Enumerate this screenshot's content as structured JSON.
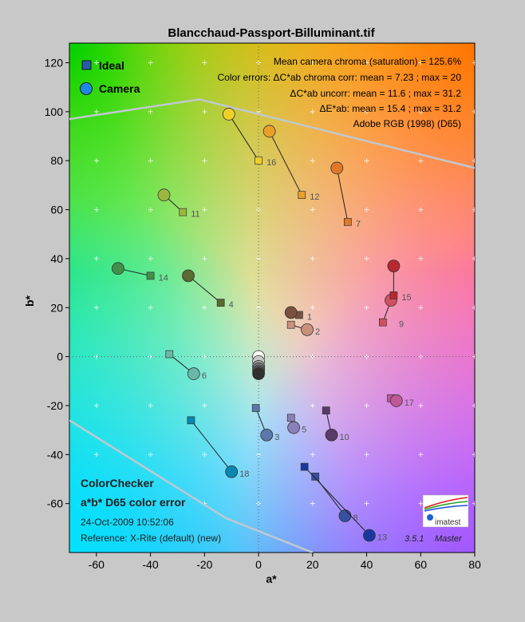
{
  "chart_data": {
    "type": "scatter",
    "title": "Blancchaud-Passport-Billuminant.tif",
    "xlabel": "a*",
    "ylabel": "b*",
    "xlim": [
      -70,
      80
    ],
    "ylim": [
      -80,
      128
    ],
    "xticks": [
      -60,
      -40,
      -20,
      0,
      20,
      40,
      60,
      80
    ],
    "yticks": [
      120,
      100,
      80,
      60,
      40,
      20,
      0,
      -20,
      -40,
      -60
    ],
    "legend": {
      "position": "top-left",
      "entries": [
        {
          "label": "Ideal",
          "marker": "square",
          "color": "#2a5aa8"
        },
        {
          "label": "Camera",
          "marker": "circle",
          "color": "#1e88e5"
        }
      ]
    },
    "annotations": [
      "Mean camera chroma (saturation) = 125.6%",
      "Color errors: ΔC*ab chroma corr:  mean = 7.23 ;  max = 20",
      "ΔC*ab uncorr:  mean = 11.6 ;  max = 31.2",
      "ΔE*ab:  mean = 15.4 ;  max = 31.2",
      "Adobe RGB (1998) (D65)"
    ],
    "gamut_boundary": [
      [
        -70,
        97
      ],
      [
        -22,
        105
      ],
      [
        -20,
        104.5
      ],
      [
        80,
        77
      ]
    ],
    "gamut_boundary_lower": [
      [
        -70,
        -26
      ],
      [
        -12,
        -66
      ],
      [
        20,
        -80
      ]
    ],
    "patches": [
      {
        "id": "1",
        "ideal": [
          15,
          17
        ],
        "camera": [
          12,
          18
        ],
        "color": "#7a5040"
      },
      {
        "id": "2",
        "ideal": [
          12,
          13
        ],
        "camera": [
          18,
          11
        ],
        "color": "#c9917c"
      },
      {
        "id": "3",
        "ideal": [
          -1,
          -21
        ],
        "camera": [
          3,
          -32
        ],
        "color": "#5a78a8"
      },
      {
        "id": "4",
        "ideal": [
          -14,
          22
        ],
        "camera": [
          -26,
          33
        ],
        "color": "#5a6a30"
      },
      {
        "id": "5",
        "ideal": [
          12,
          -25
        ],
        "camera": [
          13,
          -29
        ],
        "color": "#8a80b8"
      },
      {
        "id": "6",
        "ideal": [
          -33,
          1
        ],
        "camera": [
          -24,
          -7
        ],
        "color": "#6ab8a8"
      },
      {
        "id": "7",
        "ideal": [
          33,
          55
        ],
        "camera": [
          29,
          77
        ],
        "color": "#e07828"
      },
      {
        "id": "8",
        "ideal": [
          21,
          -49
        ],
        "camera": [
          32,
          -65
        ],
        "color": "#3850a0"
      },
      {
        "id": "9",
        "ideal": [
          46,
          14
        ],
        "camera": [
          49,
          23
        ],
        "color": "#d05060"
      },
      {
        "id": "10",
        "ideal": [
          25,
          -22
        ],
        "camera": [
          27,
          -32
        ],
        "color": "#5a3a68"
      },
      {
        "id": "11",
        "ideal": [
          -28,
          59
        ],
        "camera": [
          -35,
          66
        ],
        "color": "#9ab840"
      },
      {
        "id": "12",
        "ideal": [
          16,
          66
        ],
        "camera": [
          4,
          92
        ],
        "color": "#e8a028"
      },
      {
        "id": "13",
        "ideal": [
          17,
          -45
        ],
        "camera": [
          41,
          -73
        ],
        "color": "#1838a0"
      },
      {
        "id": "14",
        "ideal": [
          -40,
          33
        ],
        "camera": [
          -52,
          36
        ],
        "color": "#40904a"
      },
      {
        "id": "15",
        "ideal": [
          50,
          25
        ],
        "camera": [
          50,
          37
        ],
        "color": "#b82830"
      },
      {
        "id": "16",
        "ideal": [
          0,
          80
        ],
        "camera": [
          -11,
          99
        ],
        "color": "#f0d028"
      },
      {
        "id": "17",
        "ideal": [
          49,
          -17
        ],
        "camera": [
          51,
          -18
        ],
        "color": "#c05898"
      },
      {
        "id": "18",
        "ideal": [
          -25,
          -26
        ],
        "camera": [
          -10,
          -47
        ],
        "color": "#0888b0"
      },
      {
        "id": "white",
        "ideal": [
          0,
          0
        ],
        "camera": [
          0,
          0
        ],
        "color": "#ffffff"
      },
      {
        "id": "grey1",
        "ideal": [
          0,
          -2
        ],
        "camera": [
          0,
          -2
        ],
        "color": "#c8c8c8"
      },
      {
        "id": "grey2",
        "ideal": [
          0,
          -4
        ],
        "camera": [
          0,
          -4
        ],
        "color": "#a0a0a0"
      },
      {
        "id": "grey3",
        "ideal": [
          0,
          -5
        ],
        "camera": [
          0,
          -5
        ],
        "color": "#7a7a7a"
      },
      {
        "id": "grey4",
        "ideal": [
          0,
          -6
        ],
        "camera": [
          0,
          -6
        ],
        "color": "#555555"
      },
      {
        "id": "black",
        "ideal": [
          0,
          -7
        ],
        "camera": [
          0,
          -7
        ],
        "color": "#303030"
      }
    ]
  },
  "bottom_left": {
    "line1": "ColorChecker",
    "line2": "a*b* D65 color error",
    "line3": "24-Oct-2009 10:52:06",
    "line4": "Reference: X-Rite (default) (new)"
  },
  "logo_text": "imatest",
  "version": "3.5.1",
  "version_tag": "Master"
}
